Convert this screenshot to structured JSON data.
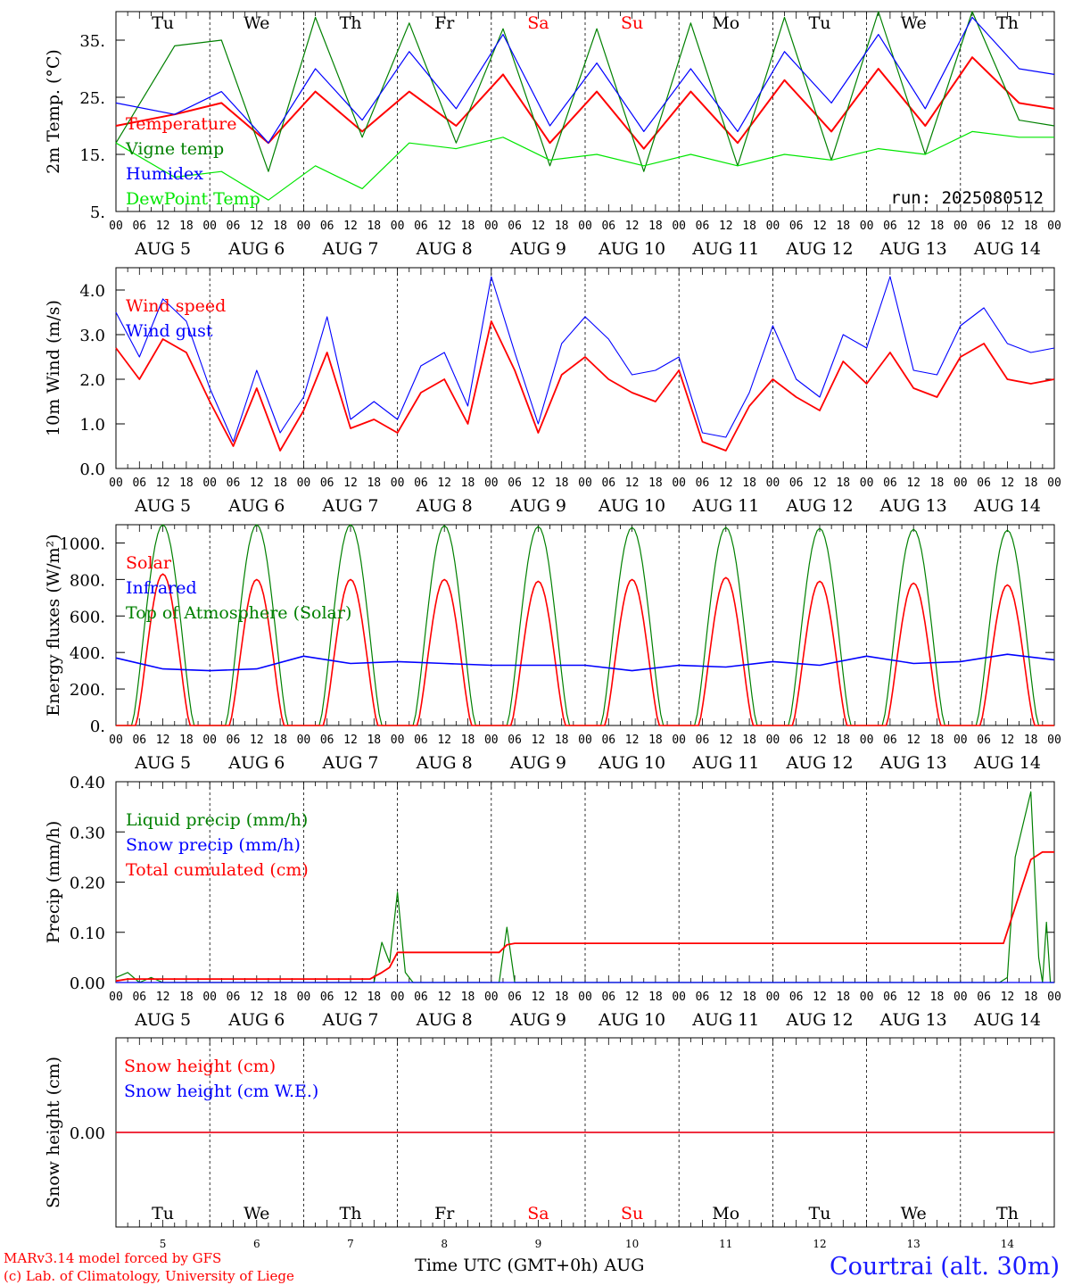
{
  "days": [
    "Tu",
    "We",
    "Th",
    "Fr",
    "Sa",
    "Su",
    "Mo",
    "Tu",
    "We",
    "Th"
  ],
  "weekend_color": "#ff0000",
  "weekend_idx": [
    4,
    5
  ],
  "dates": [
    "AUG  5",
    "AUG  6",
    "AUG  7",
    "AUG  8",
    "AUG  9",
    "AUG 10",
    "AUG 11",
    "AUG 12",
    "AUG 13",
    "AUG 14"
  ],
  "day_nums": [
    "5",
    "6",
    "7",
    "8",
    "9",
    "10",
    "11",
    "12",
    "13",
    "14"
  ],
  "hour_labels": [
    "00",
    "06",
    "12",
    "18"
  ],
  "end_hour_label": "00",
  "run_label": "run: 2025080512",
  "footer": {
    "model": "MARv3.14 model forced by GFS",
    "copyright": "(c) Lab. of Climatology, University of Liege",
    "xlabel": "Time UTC (GMT+0h)",
    "month": "AUG",
    "station": "Courtrai (alt. 30m)"
  },
  "colors": {
    "red": "#ff0000",
    "green": "#008000",
    "blue": "#0000ff",
    "lightgreen": "#00e600",
    "title_blue": "#1a1aff"
  },
  "chart_data": [
    {
      "type": "line",
      "ylabel": "2m Temp. (°C)",
      "ylim": [
        5,
        40
      ],
      "yticks": [
        "5.",
        "15.",
        "25.",
        "35."
      ],
      "yticks_val": [
        5,
        15,
        25,
        35
      ],
      "x_hours": [
        0,
        15,
        27,
        39,
        51,
        63,
        75,
        87,
        99,
        111,
        123,
        135,
        147,
        159,
        171,
        183,
        195,
        207,
        219,
        231,
        240
      ],
      "series": [
        {
          "name": "Temperature",
          "color": "red",
          "values": [
            20,
            22,
            24,
            17,
            26,
            19,
            26,
            20,
            29,
            17,
            26,
            16,
            26,
            17,
            28,
            19,
            30,
            20,
            32,
            24,
            23
          ]
        },
        {
          "name": "Vigne temp",
          "color": "green",
          "values": [
            17,
            34,
            35,
            12,
            39,
            18,
            38,
            17,
            37,
            13,
            37,
            12,
            38,
            13,
            39,
            14,
            40,
            15,
            40,
            21,
            20
          ]
        },
        {
          "name": "Humidex",
          "color": "blue",
          "values": [
            24,
            22,
            26,
            17,
            30,
            21,
            33,
            23,
            36,
            20,
            31,
            19,
            30,
            19,
            33,
            24,
            36,
            23,
            39,
            30,
            29
          ]
        },
        {
          "name": "DewPoint Temp",
          "color": "lightgreen",
          "values": [
            17,
            11,
            12,
            7,
            13,
            9,
            17,
            16,
            18,
            14,
            15,
            13,
            15,
            13,
            15,
            14,
            16,
            15,
            19,
            18,
            18
          ]
        }
      ]
    },
    {
      "type": "line",
      "ylabel": "10m Wind (m/s)",
      "ylim": [
        0,
        4.5
      ],
      "yticks": [
        "0.0",
        "1.0",
        "2.0",
        "3.0",
        "4.0"
      ],
      "yticks_val": [
        0,
        1,
        2,
        3,
        4
      ],
      "x_hours": [
        0,
        6,
        12,
        18,
        24,
        30,
        36,
        42,
        48,
        54,
        60,
        66,
        72,
        78,
        84,
        90,
        96,
        102,
        108,
        114,
        120,
        126,
        132,
        138,
        144,
        150,
        156,
        162,
        168,
        174,
        180,
        186,
        192,
        198,
        204,
        210,
        216,
        222,
        228,
        234,
        240
      ],
      "series": [
        {
          "name": "Wind speed",
          "color": "red",
          "values": [
            2.7,
            2.0,
            2.9,
            2.6,
            1.5,
            0.5,
            1.8,
            0.4,
            1.3,
            2.6,
            0.9,
            1.1,
            0.8,
            1.7,
            2.0,
            1.0,
            3.3,
            2.2,
            0.8,
            2.1,
            2.5,
            2.0,
            1.7,
            1.5,
            2.2,
            0.6,
            0.4,
            1.4,
            2.0,
            1.6,
            1.3,
            2.4,
            1.9,
            2.6,
            1.8,
            1.6,
            2.5,
            2.8,
            2.0,
            1.9,
            2.0
          ]
        },
        {
          "name": "Wind gust",
          "color": "blue",
          "values": [
            3.5,
            2.5,
            3.8,
            3.3,
            1.8,
            0.6,
            2.2,
            0.8,
            1.6,
            3.4,
            1.1,
            1.5,
            1.1,
            2.3,
            2.6,
            1.4,
            4.3,
            2.6,
            1.0,
            2.8,
            3.4,
            2.9,
            2.1,
            2.2,
            2.5,
            0.8,
            0.7,
            1.7,
            3.2,
            2.0,
            1.6,
            3.0,
            2.7,
            4.3,
            2.2,
            2.1,
            3.2,
            3.6,
            2.8,
            2.6,
            2.7
          ]
        }
      ]
    },
    {
      "type": "line",
      "ylabel": "Energy fluxes (W/m²)",
      "ylim": [
        0,
        1100
      ],
      "yticks": [
        "0.",
        "200.",
        "400.",
        "600.",
        "800.",
        "1000."
      ],
      "yticks_val": [
        0,
        200,
        400,
        600,
        800,
        1000
      ],
      "series": [
        {
          "name": "Solar",
          "color": "red",
          "peaks": [
            830,
            800,
            800,
            800,
            790,
            800,
            810,
            790,
            780,
            770
          ]
        },
        {
          "name": "Infrared",
          "color": "blue",
          "values": [
            370,
            310,
            300,
            310,
            380,
            340,
            350,
            340,
            330,
            330,
            330,
            300,
            330,
            320,
            350,
            330,
            380,
            340,
            350,
            390,
            360
          ]
        },
        {
          "name": "Top of Atmosphere (Solar)",
          "color": "green",
          "peaks": [
            1100,
            1100,
            1100,
            1095,
            1090,
            1085,
            1085,
            1080,
            1075,
            1070
          ]
        }
      ]
    },
    {
      "type": "line",
      "ylabel": "Precip (mm/h)",
      "ylim": [
        0,
        0.4
      ],
      "yticks": [
        "0.00",
        "0.10",
        "0.20",
        "0.30",
        "0.40"
      ],
      "yticks_val": [
        0,
        0.1,
        0.2,
        0.3,
        0.4
      ],
      "series": [
        {
          "name": "Liquid precip (mm/h)",
          "color": "green",
          "points": [
            [
              0,
              0.01
            ],
            [
              3,
              0.02
            ],
            [
              6,
              0
            ],
            [
              9,
              0.01
            ],
            [
              12,
              0
            ],
            [
              66,
              0
            ],
            [
              68,
              0.08
            ],
            [
              70,
              0.04
            ],
            [
              72,
              0.18
            ],
            [
              74,
              0.02
            ],
            [
              76,
              0
            ],
            [
              98,
              0
            ],
            [
              100,
              0.11
            ],
            [
              102,
              0
            ],
            [
              226,
              0
            ],
            [
              228,
              0.01
            ],
            [
              230,
              0.25
            ],
            [
              234,
              0.38
            ],
            [
              236,
              0.05
            ],
            [
              237,
              0
            ],
            [
              238,
              0.12
            ],
            [
              239,
              0
            ],
            [
              240,
              0
            ]
          ]
        },
        {
          "name": "Snow precip (mm/h)",
          "color": "blue",
          "points": [
            [
              0,
              0
            ],
            [
              240,
              0
            ]
          ]
        },
        {
          "name": "Total cumulated (cm)",
          "color": "red",
          "points": [
            [
              0,
              0.003
            ],
            [
              3,
              0.007
            ],
            [
              65,
              0.007
            ],
            [
              68,
              0.02
            ],
            [
              70,
              0.03
            ],
            [
              72,
              0.06
            ],
            [
              98,
              0.06
            ],
            [
              100,
              0.075
            ],
            [
              102,
              0.078
            ],
            [
              227,
              0.078
            ],
            [
              230,
              0.15
            ],
            [
              234,
              0.245
            ],
            [
              237,
              0.26
            ],
            [
              240,
              0.26
            ]
          ]
        }
      ]
    },
    {
      "type": "line",
      "ylabel": "Snow height (cm)",
      "ylim": [
        -1,
        1
      ],
      "yticks": [
        "0.00"
      ],
      "yticks_val": [
        0
      ],
      "series": [
        {
          "name": "Snow height (cm)",
          "color": "red",
          "values": [
            0,
            0
          ]
        },
        {
          "name": "Snow height (cm W.E.)",
          "color": "blue",
          "values": [
            0,
            0
          ]
        }
      ]
    }
  ]
}
